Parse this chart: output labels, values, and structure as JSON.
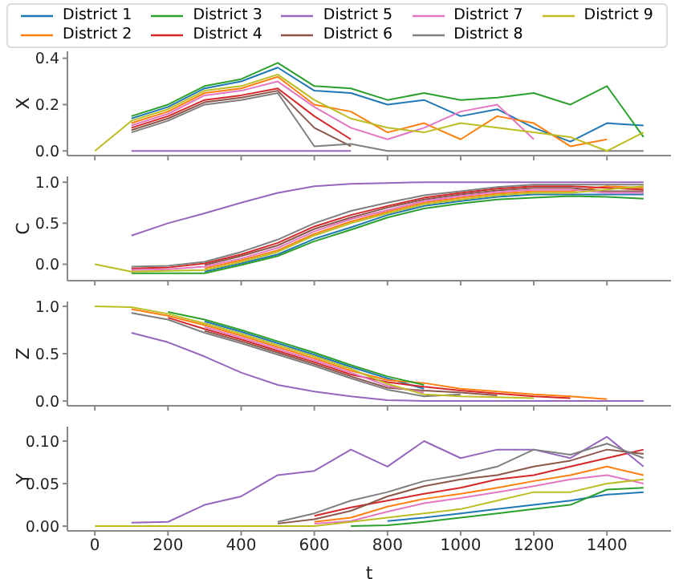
{
  "chart_data": [
    {
      "type": "line",
      "ylabel": "X",
      "legend": "top",
      "tick_labels": "y",
      "x": [
        0,
        100,
        200,
        300,
        400,
        500,
        600,
        700,
        800,
        900,
        1000,
        1100,
        1200,
        1300,
        1400,
        1500
      ],
      "xlim": [
        -75,
        1575
      ],
      "xticks": [
        {
          "value": 0,
          "label": null
        },
        {
          "value": 200,
          "label": null
        },
        {
          "value": 400,
          "label": null
        },
        {
          "value": 600,
          "label": null
        },
        {
          "value": 800,
          "label": null
        },
        {
          "value": 1000,
          "label": null
        },
        {
          "value": 1200,
          "label": null
        },
        {
          "value": 1400,
          "label": null
        }
      ],
      "ylim": [
        -0.02,
        0.43
      ],
      "yticks": [
        {
          "value": 0,
          "label": "0.0"
        },
        {
          "value": 0.2,
          "label": "0.2"
        },
        {
          "value": 0.4,
          "label": "0.4"
        }
      ],
      "series": [
        {
          "name": "District 1",
          "color": "#1f77b4",
          "values": [
            null,
            0.14,
            0.19,
            0.27,
            0.3,
            0.36,
            0.26,
            0.25,
            0.2,
            0.22,
            0.15,
            0.18,
            0.1,
            0.04,
            0.12,
            0.11
          ]
        },
        {
          "name": "District 2",
          "color": "#ff7f0e",
          "values": [
            null,
            0.12,
            0.17,
            0.25,
            0.27,
            0.32,
            0.2,
            0.17,
            0.08,
            0.12,
            0.05,
            0.15,
            0.12,
            0.02,
            0.05,
            null
          ]
        },
        {
          "name": "District 3",
          "color": "#2ca02c",
          "values": [
            null,
            0.15,
            0.2,
            0.28,
            0.31,
            0.38,
            0.28,
            0.27,
            0.22,
            0.25,
            0.22,
            0.23,
            0.25,
            0.2,
            0.28,
            0.06
          ]
        },
        {
          "name": "District 4",
          "color": "#d62728",
          "values": [
            null,
            0.1,
            0.15,
            0.22,
            0.24,
            0.27,
            0.15,
            0.05,
            null,
            null,
            null,
            null,
            null,
            null,
            null,
            null
          ]
        },
        {
          "name": "District 5",
          "color": "#9467bd",
          "values": [
            null,
            0,
            0,
            0,
            0,
            0,
            0,
            0,
            null,
            null,
            null,
            null,
            null,
            null,
            null,
            null
          ]
        },
        {
          "name": "District 6",
          "color": "#8c564b",
          "values": [
            null,
            0.09,
            0.14,
            0.21,
            0.23,
            0.26,
            0.1,
            0.02,
            null,
            null,
            null,
            null,
            null,
            null,
            null,
            null
          ]
        },
        {
          "name": "District 7",
          "color": "#e377c2",
          "values": [
            null,
            0.11,
            0.16,
            0.24,
            0.26,
            0.3,
            0.19,
            0.1,
            0.05,
            0.1,
            0.17,
            0.2,
            0.05,
            null,
            null,
            null
          ]
        },
        {
          "name": "District 8",
          "color": "#7f7f7f",
          "values": [
            null,
            0.08,
            0.13,
            0.2,
            0.22,
            0.25,
            0.02,
            0.03,
            0,
            0,
            0,
            0,
            0,
            0,
            0,
            0
          ]
        },
        {
          "name": "District 9",
          "color": "#bcbd22",
          "values": [
            0,
            0.13,
            0.18,
            0.26,
            0.28,
            0.33,
            0.22,
            0.14,
            0.1,
            0.08,
            0.12,
            0.1,
            0.08,
            0.06,
            0,
            0.08
          ]
        }
      ]
    },
    {
      "type": "line",
      "ylabel": "C",
      "tick_labels": "y",
      "x": [
        0,
        100,
        200,
        300,
        400,
        500,
        600,
        700,
        800,
        900,
        1000,
        1100,
        1200,
        1300,
        1400,
        1500
      ],
      "xlim": [
        -75,
        1575
      ],
      "xticks": [
        {
          "value": 0,
          "label": null
        },
        {
          "value": 200,
          "label": null
        },
        {
          "value": 400,
          "label": null
        },
        {
          "value": 600,
          "label": null
        },
        {
          "value": 800,
          "label": null
        },
        {
          "value": 1000,
          "label": null
        },
        {
          "value": 1200,
          "label": null
        },
        {
          "value": 1400,
          "label": null
        }
      ],
      "ylim": [
        -0.2,
        1.07
      ],
      "yticks": [
        {
          "value": 0,
          "label": "0.0"
        },
        {
          "value": 0.5,
          "label": "0.5"
        },
        {
          "value": 1,
          "label": "1.0"
        }
      ],
      "series": [
        {
          "color": "#1f77b4",
          "values": [
            null,
            null,
            null,
            -0.09,
            0.01,
            0.12,
            0.31,
            0.45,
            0.6,
            0.71,
            0.77,
            0.82,
            0.85,
            0.85,
            0.85,
            0.85
          ]
        },
        {
          "color": "#ff7f0e",
          "values": [
            null,
            null,
            null,
            -0.05,
            0.05,
            0.17,
            0.37,
            0.52,
            0.64,
            0.75,
            0.81,
            0.86,
            0.89,
            0.89,
            0.95,
            0.93
          ]
        },
        {
          "color": "#2ca02c",
          "values": [
            null,
            -0.11,
            -0.11,
            -0.11,
            -0.01,
            0.1,
            0.28,
            0.42,
            0.57,
            0.68,
            0.74,
            0.79,
            0.81,
            0.83,
            0.82,
            0.8
          ]
        },
        {
          "color": "#d62728",
          "values": [
            null,
            -0.05,
            -0.04,
            0.01,
            0.12,
            0.26,
            0.46,
            0.6,
            0.71,
            0.81,
            0.87,
            0.92,
            0.95,
            0.95,
            0.93,
            0.91
          ]
        },
        {
          "color": "#9467bd",
          "values": [
            null,
            0.35,
            0.5,
            0.62,
            0.75,
            0.87,
            0.95,
            0.98,
            0.99,
            1,
            1,
            1,
            1,
            1,
            1,
            1
          ]
        },
        {
          "color": "#8c564b",
          "values": [
            null,
            null,
            null,
            -0.01,
            0.1,
            0.23,
            0.43,
            0.57,
            0.69,
            0.79,
            0.85,
            0.9,
            0.93,
            0.93,
            0.89,
            0.89
          ]
        },
        {
          "color": "#e377c2",
          "values": [
            null,
            -0.07,
            -0.06,
            -0.03,
            0.07,
            0.2,
            0.4,
            0.55,
            0.66,
            0.77,
            0.83,
            0.88,
            0.91,
            0.91,
            0.87,
            0.87
          ]
        },
        {
          "color": "#7f7f7f",
          "values": [
            null,
            -0.03,
            -0.02,
            0.03,
            0.15,
            0.3,
            0.5,
            0.65,
            0.75,
            0.84,
            0.89,
            0.94,
            0.97,
            0.97,
            0.97,
            0.97
          ]
        },
        {
          "color": "#bcbd22",
          "values": [
            0,
            -0.09,
            -0.08,
            -0.07,
            0.03,
            0.15,
            0.35,
            0.5,
            0.62,
            0.73,
            0.79,
            0.84,
            0.87,
            0.87,
            0.91,
            0.95
          ]
        }
      ]
    },
    {
      "type": "line",
      "ylabel": "Z",
      "tick_labels": "y",
      "x": [
        0,
        100,
        200,
        300,
        400,
        500,
        600,
        700,
        800,
        900,
        1000,
        1100,
        1200,
        1300,
        1400,
        1500
      ],
      "xlim": [
        -75,
        1575
      ],
      "xticks": [
        {
          "value": 0,
          "label": null
        },
        {
          "value": 200,
          "label": null
        },
        {
          "value": 400,
          "label": null
        },
        {
          "value": 600,
          "label": null
        },
        {
          "value": 800,
          "label": null
        },
        {
          "value": 1000,
          "label": null
        },
        {
          "value": 1200,
          "label": null
        },
        {
          "value": 1400,
          "label": null
        }
      ],
      "ylim": [
        -0.05,
        1.05
      ],
      "yticks": [
        {
          "value": 0,
          "label": "0.0"
        },
        {
          "value": 0.5,
          "label": "0.5"
        },
        {
          "value": 1,
          "label": "1.0"
        }
      ],
      "series": [
        {
          "color": "#1f77b4",
          "values": [
            null,
            null,
            null,
            0.84,
            0.73,
            0.61,
            0.49,
            0.36,
            0.24,
            0.13,
            null,
            null,
            null,
            null,
            null,
            null
          ]
        },
        {
          "color": "#ff7f0e",
          "values": [
            null,
            0.97,
            0.9,
            0.8,
            0.69,
            0.57,
            0.45,
            0.32,
            0.22,
            0.19,
            0.13,
            0.1,
            0.07,
            0.05,
            0.02,
            null
          ]
        },
        {
          "color": "#2ca02c",
          "values": [
            null,
            null,
            0.94,
            0.86,
            0.75,
            0.63,
            0.51,
            0.38,
            0.26,
            0.17,
            null,
            null,
            null,
            null,
            null,
            null
          ]
        },
        {
          "color": "#d62728",
          "values": [
            null,
            null,
            0.88,
            0.76,
            0.65,
            0.53,
            0.41,
            0.28,
            0.2,
            0.15,
            0.11,
            0.08,
            0.05,
            0.03,
            null,
            null
          ]
        },
        {
          "color": "#9467bd",
          "values": [
            null,
            0.72,
            0.62,
            0.47,
            0.3,
            0.17,
            0.1,
            0.05,
            0.01,
            0,
            0,
            0,
            0,
            0,
            0,
            0
          ]
        },
        {
          "color": "#8c564b",
          "values": [
            null,
            null,
            null,
            0.74,
            0.63,
            0.51,
            0.39,
            0.26,
            0.14,
            0.11,
            0.09,
            0.06,
            null,
            null,
            null,
            null
          ]
        },
        {
          "color": "#e377c2",
          "values": [
            null,
            null,
            null,
            0.78,
            0.67,
            0.55,
            0.43,
            0.3,
            0.16,
            0.09,
            null,
            null,
            null,
            null,
            null,
            null
          ]
        },
        {
          "color": "#7f7f7f",
          "values": [
            null,
            0.93,
            0.86,
            0.72,
            0.61,
            0.49,
            0.37,
            0.24,
            0.12,
            0.05,
            0.07,
            null,
            null,
            null,
            null,
            null
          ]
        },
        {
          "color": "#bcbd22",
          "values": [
            1,
            0.99,
            0.92,
            0.82,
            0.71,
            0.59,
            0.47,
            0.34,
            0.18,
            0.07,
            0.05,
            0.04,
            0.03,
            null,
            null,
            null
          ]
        }
      ]
    },
    {
      "type": "line",
      "ylabel": "Y",
      "xlabel": "t",
      "x": [
        0,
        100,
        200,
        300,
        400,
        500,
        600,
        700,
        800,
        900,
        1000,
        1100,
        1200,
        1300,
        1400,
        1500
      ],
      "xlim": [
        -75,
        1575
      ],
      "xticks": [
        0,
        200,
        400,
        600,
        800,
        1000,
        1200,
        1400
      ],
      "ylim": [
        -0.0056,
        0.117
      ],
      "yticks": [
        {
          "value": 0,
          "label": "0.00"
        },
        {
          "value": 0.05,
          "label": "0.05"
        },
        {
          "value": 0.1,
          "label": "0.10"
        }
      ],
      "series": [
        {
          "color": "#1f77b4",
          "values": [
            null,
            null,
            null,
            null,
            null,
            null,
            null,
            null,
            0.006,
            0.01,
            0.015,
            0.02,
            0.025,
            0.03,
            0.037,
            0.04
          ]
        },
        {
          "color": "#ff7f0e",
          "values": [
            null,
            null,
            null,
            null,
            null,
            null,
            0.005,
            0.01,
            0.023,
            0.032,
            0.038,
            0.045,
            0.053,
            0.06,
            0.07,
            0.06
          ]
        },
        {
          "color": "#2ca02c",
          "values": [
            null,
            null,
            null,
            null,
            null,
            null,
            null,
            0,
            0.001,
            0.005,
            0.01,
            0.015,
            0.02,
            0.025,
            0.043,
            0.045
          ]
        },
        {
          "color": "#d62728",
          "values": [
            null,
            null,
            null,
            null,
            null,
            null,
            0.012,
            0.022,
            0.03,
            0.038,
            0.045,
            0.055,
            0.06,
            0.07,
            0.08,
            0.09
          ]
        },
        {
          "color": "#9467bd",
          "values": [
            null,
            0.004,
            0.005,
            0.025,
            0.035,
            0.06,
            0.065,
            0.09,
            0.07,
            0.1,
            0.08,
            0.09,
            0.09,
            0.08,
            0.105,
            0.07
          ]
        },
        {
          "color": "#8c564b",
          "values": [
            null,
            null,
            null,
            null,
            null,
            0.003,
            0.008,
            0.018,
            0.035,
            0.047,
            0.055,
            0.06,
            0.07,
            0.077,
            0.09,
            0.085
          ]
        },
        {
          "color": "#e377c2",
          "values": [
            null,
            null,
            null,
            null,
            null,
            null,
            0.003,
            0.006,
            0.017,
            0.027,
            0.033,
            0.04,
            0.047,
            0.055,
            0.06,
            0.05
          ]
        },
        {
          "color": "#7f7f7f",
          "values": [
            null,
            null,
            null,
            null,
            null,
            0.005,
            0.015,
            0.03,
            0.04,
            0.053,
            0.06,
            0.07,
            0.09,
            0.084,
            0.097,
            0.08
          ]
        },
        {
          "color": "#bcbd22",
          "values": [
            0,
            0,
            0,
            0,
            0,
            0,
            0,
            0.005,
            0.01,
            0.015,
            0.02,
            0.03,
            0.04,
            0.04,
            0.05,
            0.055
          ]
        }
      ]
    }
  ]
}
